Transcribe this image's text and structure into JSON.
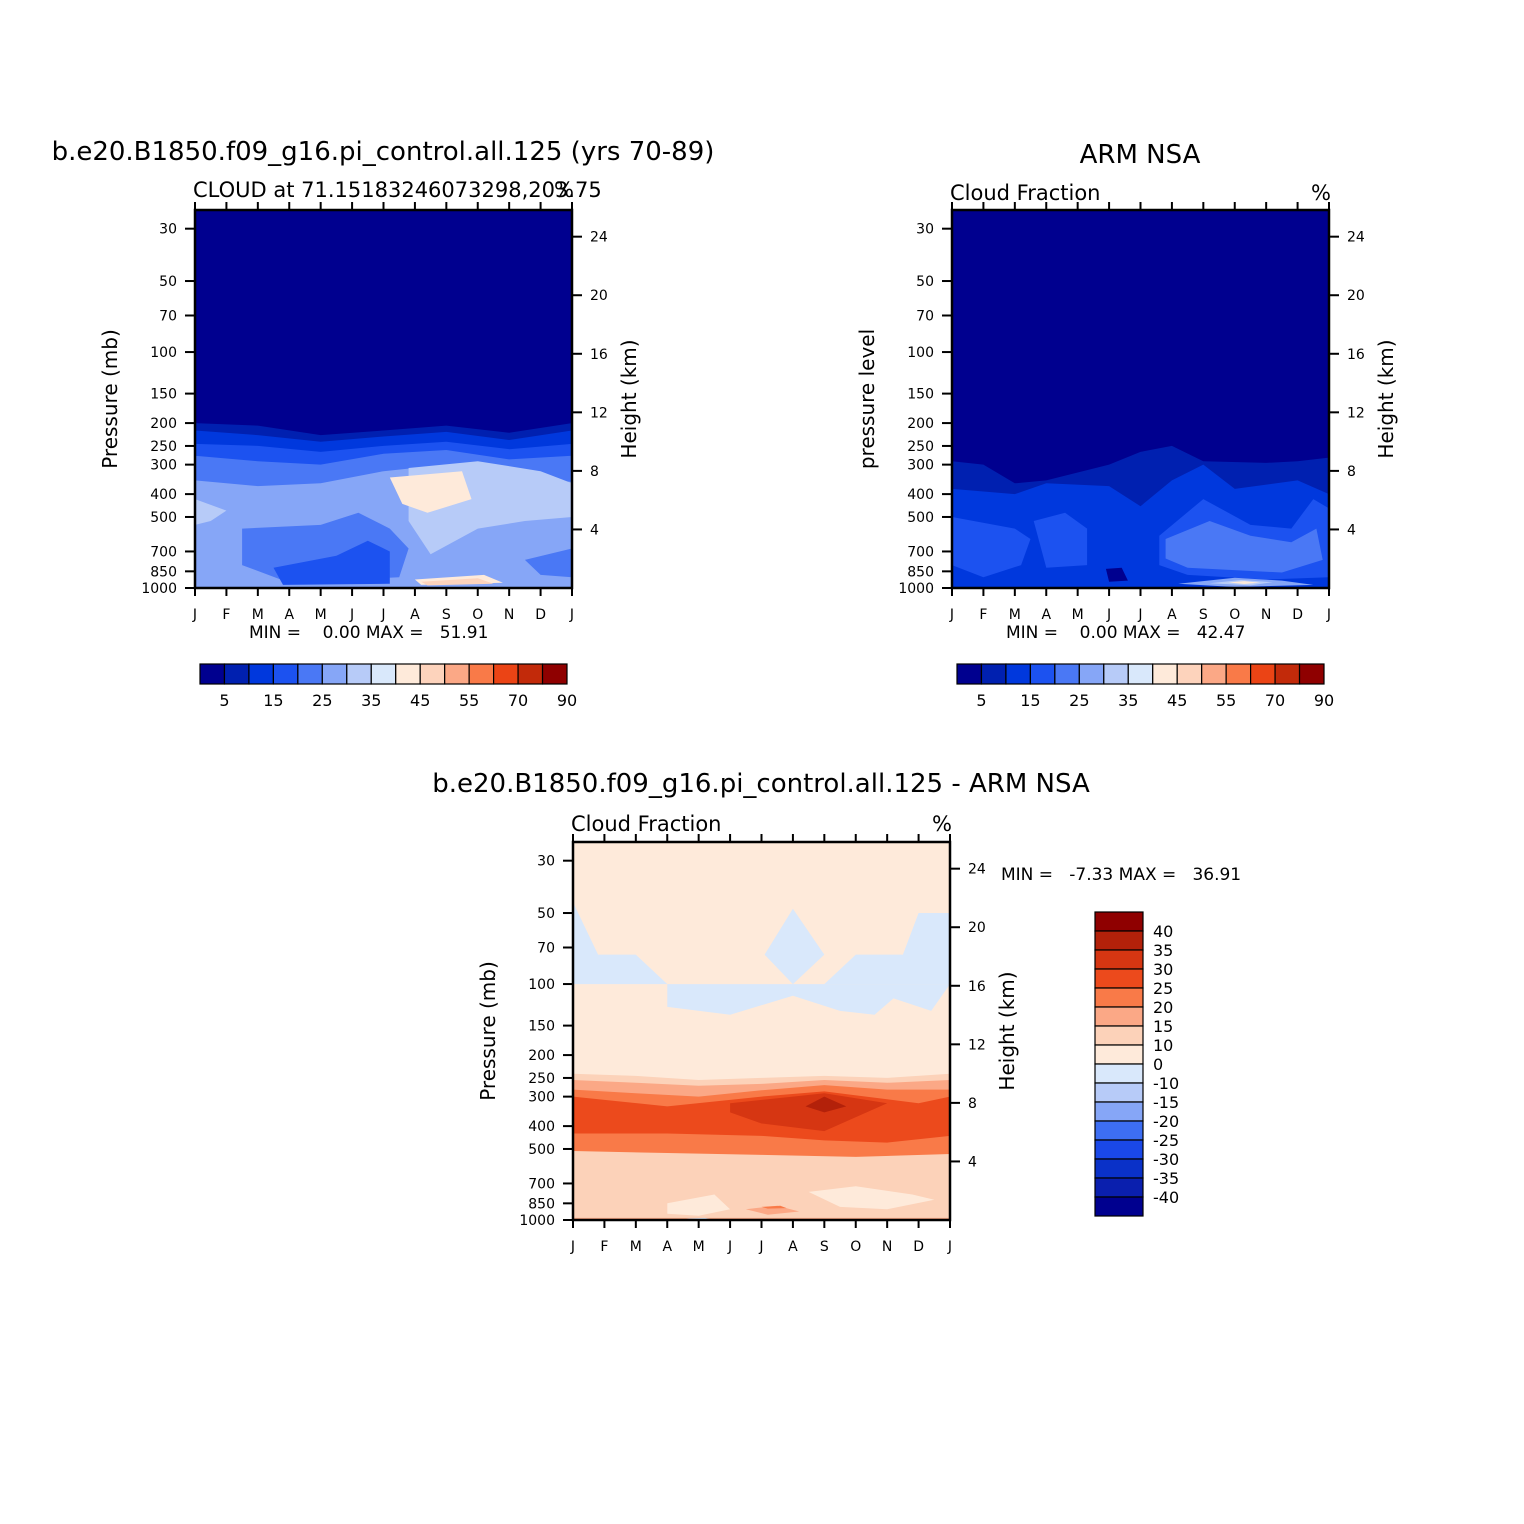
{
  "figure": {
    "colors": {
      "abs_scale": [
        "#00008f",
        "#0020b0",
        "#0038dd",
        "#1c52f0",
        "#4a78f5",
        "#86a6f7",
        "#b7cbf8",
        "#d9e8fb",
        "#feeada",
        "#fdd3bc",
        "#fba886",
        "#f97a48",
        "#eb4415",
        "#c22a0a",
        "#8f0000"
      ],
      "diff_scale": [
        "#00008f",
        "#0a1fae",
        "#0a31c8",
        "#1a48e8",
        "#3d6ef3",
        "#86a6f7",
        "#b7cbf8",
        "#d9e8fb",
        "#feeada",
        "#fcd2b9",
        "#fba886",
        "#f97a48",
        "#ec4a1c",
        "#d63612",
        "#b3210a",
        "#8f0000"
      ]
    },
    "panel_model": {
      "title": "b.e20.B1850.f09_g16.pi_control.all.125 (yrs 70-89)",
      "subtitle_left": "CLOUD at 71.15183246073298,203.75",
      "subtitle_right": "%",
      "ylabel_left": "Pressure (mb)",
      "ylabel_right": "Height (km)",
      "stats": "MIN =    0.00 MAX =   51.91"
    },
    "panel_obs": {
      "title": "ARM NSA",
      "subtitle_left": "Cloud Fraction",
      "subtitle_right": "%",
      "ylabel_left": "pressure level",
      "ylabel_right": "Height (km)",
      "stats": "MIN =    0.00 MAX =   42.47"
    },
    "panel_diff": {
      "title": "b.e20.B1850.f09_g16.pi_control.all.125 - ARM NSA",
      "subtitle_left": "Cloud Fraction",
      "subtitle_right": "%",
      "ylabel_left": "Pressure (mb)",
      "ylabel_right": "Height (km)",
      "stats": "MIN =   -7.33 MAX =   36.91"
    }
  },
  "chart_data": [
    {
      "type": "heatmap",
      "title": "b.e20.B1850.f09_g16.pi_control.all.125 (yrs 70-89)",
      "subtitle": "CLOUD at 71.15183246073298,203.75",
      "units": "%",
      "xlabel": "",
      "ylabel": "Pressure (mb)",
      "ylabel_right": "Height (km)",
      "x_ticks": [
        "J",
        "F",
        "M",
        "A",
        "M",
        "J",
        "J",
        "A",
        "S",
        "O",
        "N",
        "D",
        "J"
      ],
      "y_ticks": [
        30,
        50,
        70,
        100,
        150,
        200,
        250,
        300,
        400,
        500,
        700,
        850,
        1000
      ],
      "y_ticks_right": [
        24,
        20,
        16,
        12,
        8,
        4
      ],
      "y_scale": "log",
      "ylim": [
        1000,
        25
      ],
      "contour_levels": [
        5,
        10,
        15,
        20,
        25,
        30,
        35,
        40,
        45,
        50,
        55,
        60,
        70,
        80,
        90
      ],
      "colorbar_labels": [
        "5",
        "15",
        "25",
        "35",
        "45",
        "55",
        "70",
        "90"
      ],
      "min": 0.0,
      "max": 51.91,
      "approx_profile": [
        {
          "pressure_range": [
            25,
            200
          ],
          "value": "0-5"
        },
        {
          "pressure_range": [
            200,
            300
          ],
          "value": "5-25"
        },
        {
          "pressure_range": [
            300,
            400
          ],
          "value": "25-35"
        },
        {
          "pressure_range": [
            350,
            550
          ],
          "value": "35-45, peak 45-50 near Aug"
        },
        {
          "pressure_range": [
            550,
            1000
          ],
          "value": "25-35"
        }
      ]
    },
    {
      "type": "heatmap",
      "title": "ARM NSA",
      "subtitle": "Cloud Fraction",
      "units": "%",
      "xlabel": "",
      "ylabel": "pressure level",
      "ylabel_right": "Height (km)",
      "x_ticks": [
        "J",
        "F",
        "M",
        "A",
        "M",
        "J",
        "J",
        "A",
        "S",
        "O",
        "N",
        "D",
        "J"
      ],
      "y_ticks": [
        30,
        50,
        70,
        100,
        150,
        200,
        250,
        300,
        400,
        500,
        700,
        850,
        1000
      ],
      "y_ticks_right": [
        24,
        20,
        16,
        12,
        8,
        4
      ],
      "y_scale": "log",
      "ylim": [
        1000,
        25
      ],
      "contour_levels": [
        5,
        10,
        15,
        20,
        25,
        30,
        35,
        40,
        45,
        50,
        55,
        60,
        70,
        80,
        90
      ],
      "colorbar_labels": [
        "5",
        "15",
        "25",
        "35",
        "45",
        "55",
        "70",
        "90"
      ],
      "min": 0.0,
      "max": 42.47,
      "approx_profile": [
        {
          "pressure_range": [
            25,
            300
          ],
          "value": "0-5"
        },
        {
          "pressure_range": [
            300,
            450
          ],
          "value": "5-15"
        },
        {
          "pressure_range": [
            450,
            1000
          ],
          "value": "15-30"
        },
        {
          "pressure_range": [
            950,
            1000
          ],
          "value": "up to 40-45 near Oct"
        }
      ]
    },
    {
      "type": "heatmap",
      "title": "b.e20.B1850.f09_g16.pi_control.all.125 - ARM NSA",
      "subtitle": "Cloud Fraction",
      "units": "%",
      "xlabel": "",
      "ylabel": "Pressure (mb)",
      "ylabel_right": "Height (km)",
      "x_ticks": [
        "J",
        "F",
        "M",
        "A",
        "M",
        "J",
        "J",
        "A",
        "S",
        "O",
        "N",
        "D",
        "J"
      ],
      "y_ticks": [
        30,
        50,
        70,
        100,
        150,
        200,
        250,
        300,
        400,
        500,
        700,
        850,
        1000
      ],
      "y_ticks_right": [
        24,
        20,
        16,
        12,
        8,
        4
      ],
      "y_scale": "log",
      "ylim": [
        1000,
        25
      ],
      "contour_levels": [
        -40,
        -35,
        -30,
        -25,
        -20,
        -15,
        -10,
        0,
        10,
        15,
        20,
        25,
        30,
        35,
        40
      ],
      "colorbar_labels": [
        "40",
        "35",
        "30",
        "25",
        "20",
        "15",
        "10",
        "0",
        "-10",
        "-15",
        "-20",
        "-25",
        "-30",
        "-35",
        "-40"
      ],
      "min": -7.33,
      "max": 36.91,
      "approx_profile": [
        {
          "pressure_range": [
            25,
            60
          ],
          "value": "0-10"
        },
        {
          "pressure_range": [
            60,
            150
          ],
          "value": "-10-0 band, 0-10 elsewhere"
        },
        {
          "pressure_range": [
            150,
            250
          ],
          "value": "0-10"
        },
        {
          "pressure_range": [
            250,
            450
          ],
          "value": "20-35, peak 35-40 near Sep"
        },
        {
          "pressure_range": [
            450,
            1000
          ],
          "value": "0-15"
        }
      ]
    }
  ]
}
